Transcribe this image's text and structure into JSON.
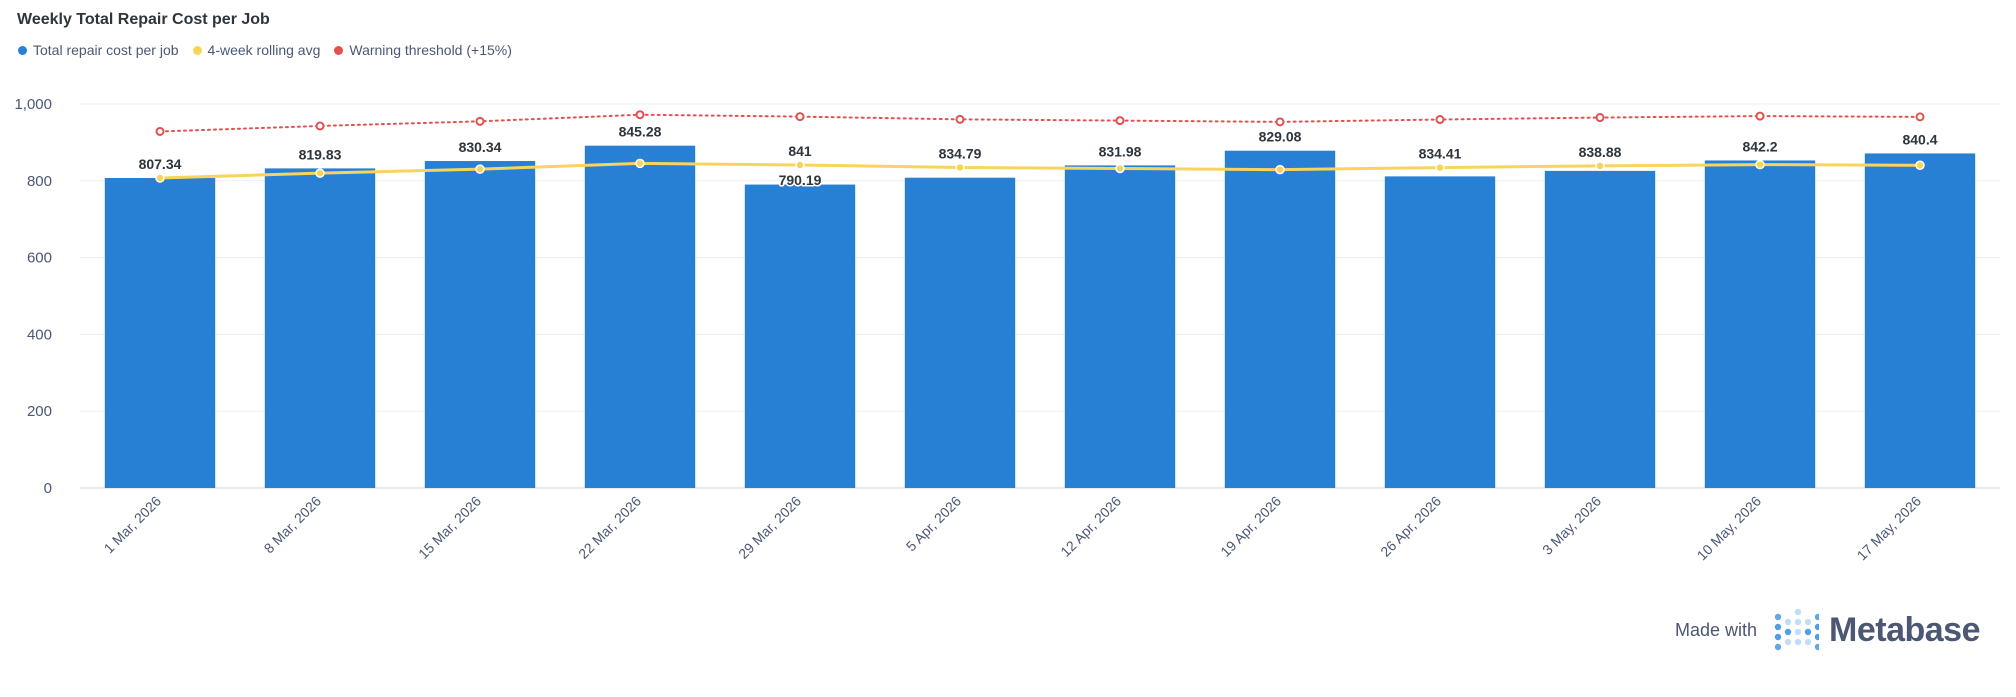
{
  "chart_data": {
    "type": "bar",
    "title": "Weekly Total Repair Cost per Job",
    "categories": [
      "1 Mar, 2026",
      "8 Mar, 2026",
      "15 Mar, 2026",
      "22 Mar, 2026",
      "29 Mar, 2026",
      "5 Apr, 2026",
      "12 Apr, 2026",
      "19 Apr, 2026",
      "26 Apr, 2026",
      "3 May, 2026",
      "10 May, 2026",
      "17 May, 2026"
    ],
    "series": [
      {
        "name": "Total repair cost per job",
        "type": "bar",
        "color": "#2780d3",
        "values": [
          807.34,
          832.32,
          851.48,
          891.48,
          790.19,
          808.05,
          840.1,
          878.34,
          811.5,
          825.8,
          852.96,
          871.27
        ]
      },
      {
        "name": "4-week rolling avg",
        "type": "line",
        "color": "#f9d45c",
        "values": [
          807.34,
          819.83,
          830.34,
          845.28,
          841,
          834.79,
          831.98,
          829.08,
          834.41,
          838.88,
          842.2,
          840.4
        ]
      },
      {
        "name": "Warning threshold (+15%)",
        "type": "line",
        "style": "dotted",
        "color": "#e35050",
        "values": [
          928.44,
          942.8,
          954.89,
          972.07,
          967.15,
          960.01,
          956.78,
          953.44,
          959.57,
          964.71,
          968.53,
          966.46
        ]
      }
    ],
    "data_labels": [
      "807.34",
      "819.83",
      "830.34",
      "845.28",
      "841",
      "834.79",
      "831.98",
      "829.08",
      "834.41",
      "838.88",
      "842.2",
      "840.4"
    ],
    "low_labels": [
      "790.19"
    ],
    "y_ticks": [
      "0",
      "200",
      "400",
      "600",
      "800",
      "1,000"
    ],
    "ylim": [
      0,
      1000
    ],
    "grid": true,
    "legend_position": "top-left"
  },
  "footer": {
    "made_with": "Made with",
    "brand": "Metabase"
  },
  "icons": {
    "brand_logo": "metabase-logo-icon"
  }
}
